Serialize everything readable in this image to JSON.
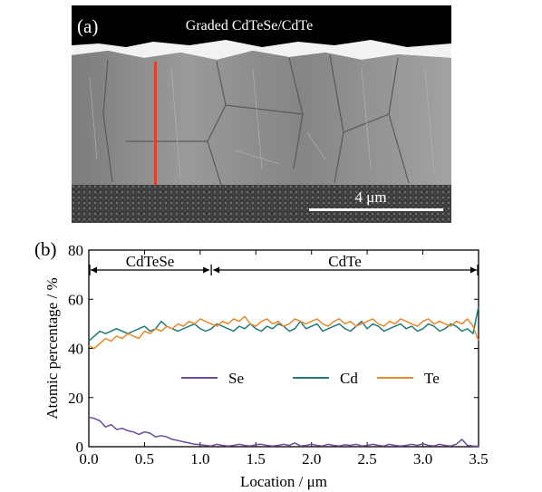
{
  "figure": {
    "panel_a": {
      "label": "(a)",
      "title": "Graded CdTeSe/CdTe",
      "scale_bar_label": "4 μm",
      "colors": {
        "frame": "#000000",
        "line_scan": "#d9432f",
        "scale_bar": "#ffffff"
      }
    },
    "panel_b": {
      "label": "(b)"
    }
  },
  "chart_data": {
    "type": "line",
    "xlabel": "Location / μm",
    "ylabel": "Atomic percentage / %",
    "xlim": [
      0.0,
      3.5
    ],
    "ylim": [
      0,
      80
    ],
    "xticks": [
      "0.0",
      "0.5",
      "1.0",
      "1.5",
      "2.0",
      "2.5",
      "3.0",
      "3.5"
    ],
    "yticks": [
      "0",
      "20",
      "40",
      "60",
      "80"
    ],
    "grid": false,
    "legend_placement": "center",
    "regions": [
      {
        "label": "CdTeSe",
        "from": 0.0,
        "to": 1.1
      },
      {
        "label": "CdTe",
        "from": 1.1,
        "to": 3.5
      }
    ],
    "x": [
      0.0,
      0.05,
      0.1,
      0.15,
      0.2,
      0.25,
      0.3,
      0.35,
      0.4,
      0.45,
      0.5,
      0.55,
      0.6,
      0.65,
      0.7,
      0.75,
      0.8,
      0.85,
      0.9,
      0.95,
      1.0,
      1.05,
      1.1,
      1.15,
      1.2,
      1.25,
      1.3,
      1.35,
      1.4,
      1.45,
      1.5,
      1.55,
      1.6,
      1.65,
      1.7,
      1.75,
      1.8,
      1.85,
      1.9,
      1.95,
      2.0,
      2.05,
      2.1,
      2.15,
      2.2,
      2.25,
      2.3,
      2.35,
      2.4,
      2.45,
      2.5,
      2.55,
      2.6,
      2.65,
      2.7,
      2.75,
      2.8,
      2.85,
      2.9,
      2.95,
      3.0,
      3.05,
      3.1,
      3.15,
      3.2,
      3.25,
      3.3,
      3.35,
      3.4,
      3.45,
      3.5
    ],
    "series": [
      {
        "name": "Se",
        "color": "#6b4c9a",
        "values": [
          12,
          11.5,
          10.5,
          8,
          9,
          7,
          7.5,
          6.5,
          6,
          5,
          6,
          5.5,
          4,
          4.5,
          4,
          3,
          2.5,
          2,
          1.5,
          1,
          0.8,
          0.5,
          0.3,
          1,
          0.5,
          0.3,
          0.5,
          1,
          0.5,
          0.3,
          0.8,
          1,
          0.5,
          0.3,
          0.5,
          1,
          0.5,
          1.5,
          0.3,
          0.5,
          1,
          0.5,
          0.3,
          1,
          0.5,
          0.3,
          0.8,
          0.5,
          1,
          0.3,
          0.5,
          1,
          0.5,
          0.3,
          1,
          0.5,
          0.3,
          0.5,
          1,
          0.5,
          1.2,
          0.5,
          0.3,
          1,
          0.5,
          0.3,
          1,
          3,
          0.5,
          0.3,
          0.2
        ]
      },
      {
        "name": "Cd",
        "color": "#1f7a78",
        "values": [
          43,
          45,
          47,
          46,
          47,
          48,
          47,
          46,
          47,
          48,
          49,
          47,
          48,
          51,
          49,
          48,
          47,
          48,
          49,
          50,
          48,
          47,
          48,
          50,
          49,
          48,
          47,
          49,
          48,
          50,
          48,
          47,
          49,
          48,
          50,
          49,
          47,
          48,
          51,
          48,
          49,
          50,
          47,
          48,
          49,
          50,
          48,
          47,
          49,
          51,
          48,
          50,
          49,
          47,
          48,
          49,
          50,
          48,
          49,
          47,
          48,
          50,
          49,
          47,
          48,
          50,
          49,
          47,
          48,
          46,
          57
        ]
      },
      {
        "name": "Te",
        "color": "#e8892b",
        "values": [
          41,
          40,
          42,
          44,
          43,
          45,
          44,
          46,
          45,
          44,
          47,
          46,
          48,
          47,
          49,
          48,
          50,
          49,
          51,
          50,
          52,
          51,
          50,
          49,
          51,
          50,
          52,
          51,
          53,
          50,
          49,
          51,
          52,
          50,
          51,
          49,
          50,
          52,
          51,
          50,
          51,
          52,
          50,
          49,
          51,
          52,
          50,
          51,
          49,
          50,
          51,
          52,
          50,
          49,
          51,
          50,
          52,
          51,
          50,
          49,
          51,
          52,
          50,
          51,
          50,
          49,
          51,
          50,
          52,
          49,
          43
        ]
      }
    ]
  }
}
